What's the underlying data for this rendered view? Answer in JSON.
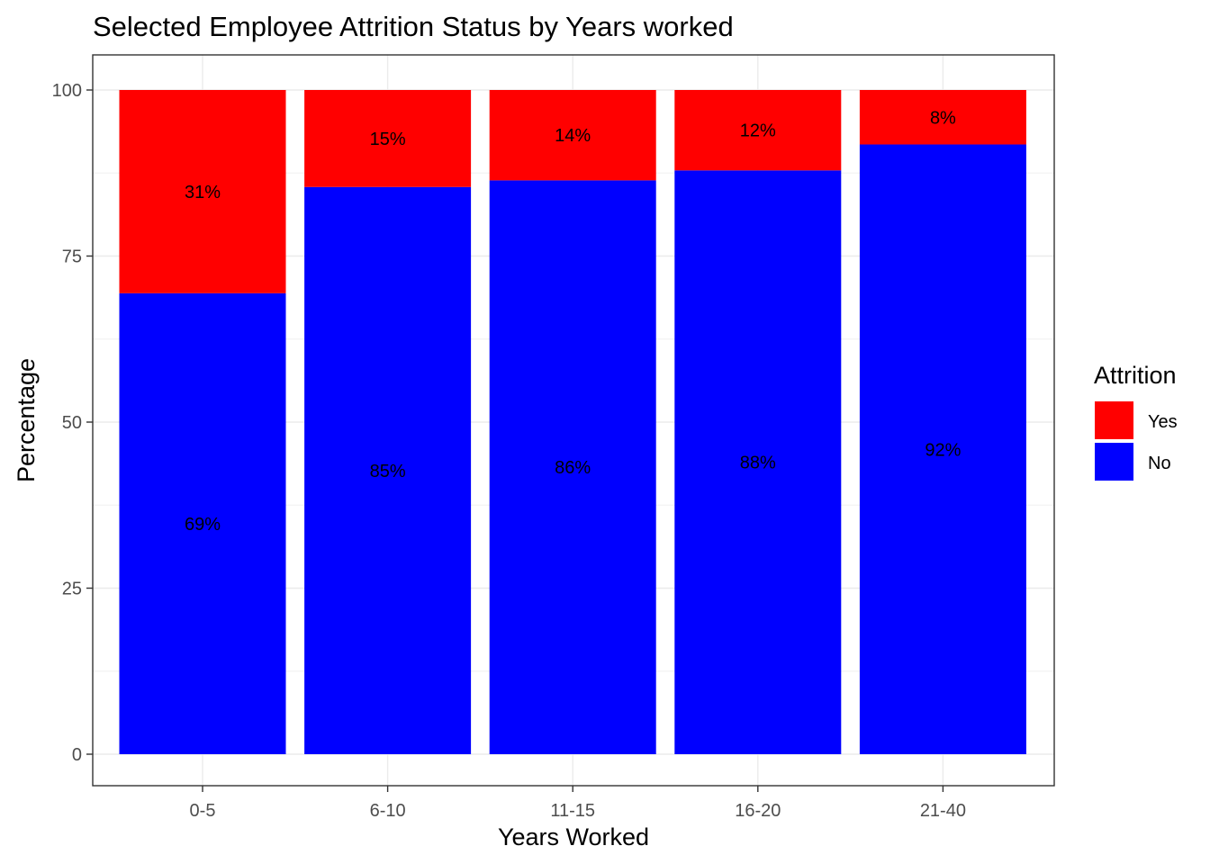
{
  "chart_data": {
    "type": "bar",
    "stacked": true,
    "title": "Selected Employee Attrition Status by Years worked",
    "xlabel": "Years Worked",
    "ylabel": "Percentage",
    "categories": [
      "0-5",
      "6-10",
      "11-15",
      "16-20",
      "21-40"
    ],
    "ylim": [
      0,
      100
    ],
    "yticks": [
      0,
      25,
      50,
      75,
      100
    ],
    "grid": true,
    "legend": {
      "title": "Attrition",
      "placement": "right"
    },
    "series": [
      {
        "name": "No",
        "color": "#0000ff",
        "values": [
          69.4,
          85.4,
          86.4,
          87.9,
          91.8
        ],
        "labels": [
          "69%",
          "85%",
          "86%",
          "88%",
          "92%"
        ]
      },
      {
        "name": "Yes",
        "color": "#ff0000",
        "values": [
          30.6,
          14.6,
          13.6,
          12.1,
          8.2
        ],
        "labels": [
          "31%",
          "15%",
          "14%",
          "12%",
          "8%"
        ]
      }
    ]
  }
}
